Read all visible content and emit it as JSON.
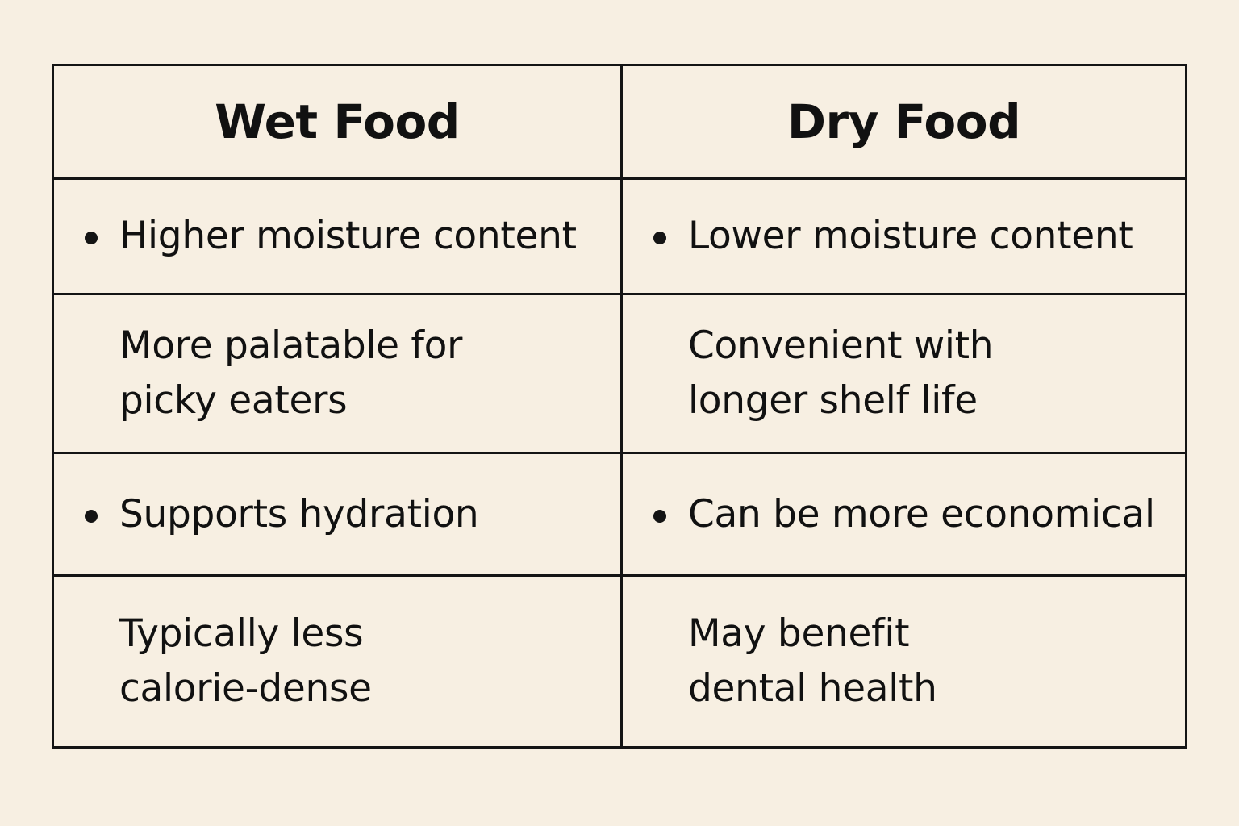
{
  "table": {
    "headers": [
      "Wet Food",
      "Dry Food"
    ],
    "rows": [
      {
        "left": {
          "bullet": true,
          "lines": [
            "Higher moisture content"
          ]
        },
        "right": {
          "bullet": true,
          "lines": [
            "Lower moisture content"
          ]
        }
      },
      {
        "left": {
          "bullet": false,
          "lines": [
            "More palatable for",
            "picky eaters"
          ]
        },
        "right": {
          "bullet": false,
          "lines": [
            "Convenient with",
            "longer shelf life"
          ]
        }
      },
      {
        "left": {
          "bullet": true,
          "lines": [
            "Supports hydration"
          ]
        },
        "right": {
          "bullet": true,
          "lines": [
            "Can be more economical"
          ]
        }
      },
      {
        "left": {
          "bullet": false,
          "lines": [
            "Typically less",
            "calorie-dense"
          ]
        },
        "right": {
          "bullet": false,
          "lines": [
            "May benefit",
            "dental health"
          ]
        }
      }
    ]
  },
  "colors": {
    "background": "#f7efe2",
    "border": "#141414",
    "text": "#111111"
  }
}
